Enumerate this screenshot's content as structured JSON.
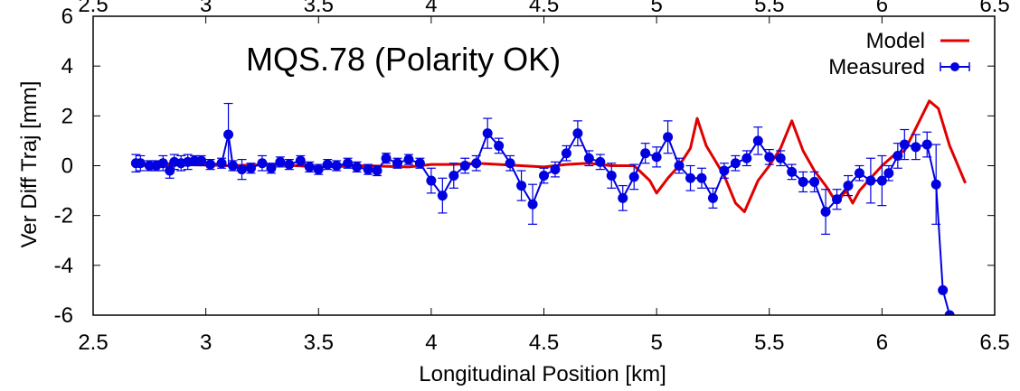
{
  "chart_data": {
    "type": "line",
    "title": "MQS.78 (Polarity OK)",
    "xlabel": "Longitudinal Position [km]",
    "ylabel": "Ver Diff Traj [mm]",
    "xlim": [
      2.5,
      6.5
    ],
    "ylim": [
      -6,
      6
    ],
    "x_ticks": [
      "2.5",
      "3",
      "3.5",
      "4",
      "4.5",
      "5",
      "5.5",
      "6",
      "6.5"
    ],
    "y_ticks": [
      "6",
      "4",
      "2",
      "0",
      "-2",
      "-4",
      "-6"
    ],
    "legend_position": "top-right",
    "grid": false,
    "series": [
      {
        "name": "Model",
        "color": "#e00000",
        "x": [
          2.7,
          2.9,
          3.1,
          3.3,
          3.5,
          3.7,
          3.9,
          4.0,
          4.1,
          4.2,
          4.3,
          4.4,
          4.5,
          4.6,
          4.7,
          4.8,
          4.9,
          4.97,
          5.0,
          5.05,
          5.1,
          5.15,
          5.18,
          5.22,
          5.3,
          5.35,
          5.39,
          5.45,
          5.5,
          5.55,
          5.6,
          5.65,
          5.7,
          5.75,
          5.8,
          5.84,
          5.87,
          5.9,
          5.95,
          6.0,
          6.05,
          6.1,
          6.15,
          6.21,
          6.25,
          6.3,
          6.37
        ],
        "y": [
          0.0,
          0.05,
          0.0,
          0.05,
          -0.05,
          0.0,
          -0.05,
          0.05,
          0.05,
          0.1,
          0.05,
          0.0,
          -0.05,
          0.05,
          0.1,
          0.0,
          0.0,
          -0.6,
          -1.1,
          -0.5,
          0.0,
          0.7,
          1.9,
          0.8,
          -0.4,
          -1.5,
          -1.85,
          -0.6,
          0.0,
          0.7,
          1.8,
          0.6,
          -0.2,
          -0.8,
          -1.5,
          -1.0,
          -1.5,
          -1.0,
          -0.5,
          0.0,
          0.4,
          0.6,
          1.5,
          2.6,
          2.3,
          0.8,
          -0.7
        ]
      },
      {
        "name": "Measured",
        "color": "#0000e0",
        "x": [
          2.69,
          2.71,
          2.75,
          2.78,
          2.81,
          2.84,
          2.86,
          2.89,
          2.92,
          2.95,
          2.98,
          3.02,
          3.07,
          3.1,
          3.12,
          3.16,
          3.2,
          3.25,
          3.29,
          3.33,
          3.37,
          3.42,
          3.46,
          3.5,
          3.54,
          3.58,
          3.63,
          3.67,
          3.72,
          3.76,
          3.8,
          3.85,
          3.9,
          3.95,
          4.0,
          4.05,
          4.1,
          4.15,
          4.2,
          4.25,
          4.3,
          4.35,
          4.4,
          4.45,
          4.5,
          4.55,
          4.6,
          4.65,
          4.7,
          4.75,
          4.8,
          4.85,
          4.9,
          4.95,
          5.0,
          5.05,
          5.1,
          5.15,
          5.2,
          5.25,
          5.3,
          5.35,
          5.4,
          5.45,
          5.5,
          5.55,
          5.6,
          5.65,
          5.7,
          5.75,
          5.8,
          5.85,
          5.9,
          5.95,
          6.0,
          6.03,
          6.07,
          6.1,
          6.15,
          6.2,
          6.24,
          6.27,
          6.3,
          6.32
        ],
        "y": [
          0.1,
          0.1,
          0.0,
          0.0,
          0.1,
          -0.2,
          0.15,
          0.1,
          0.15,
          0.2,
          0.2,
          0.05,
          0.1,
          1.25,
          0.0,
          -0.15,
          -0.1,
          0.1,
          -0.1,
          0.15,
          0.05,
          0.2,
          -0.05,
          -0.15,
          0.05,
          0.0,
          0.1,
          -0.05,
          -0.15,
          -0.2,
          0.3,
          0.1,
          0.25,
          0.1,
          -0.6,
          -1.2,
          -0.4,
          0.0,
          0.1,
          1.3,
          0.8,
          0.1,
          -0.8,
          -1.55,
          -0.4,
          -0.15,
          0.5,
          1.3,
          0.3,
          0.15,
          -0.4,
          -1.3,
          -0.45,
          0.5,
          0.35,
          1.15,
          0.0,
          -0.5,
          -0.5,
          -1.3,
          -0.2,
          0.1,
          0.3,
          1.0,
          0.35,
          0.3,
          -0.25,
          -0.65,
          -0.65,
          -1.85,
          -1.35,
          -0.8,
          -0.3,
          -0.6,
          -0.6,
          -0.3,
          0.4,
          0.85,
          0.75,
          0.85,
          -0.75,
          -5.0,
          -6.0,
          -7.0
        ],
        "yerr": [
          0.35,
          0.3,
          0.2,
          0.2,
          0.3,
          0.3,
          0.3,
          0.3,
          0.3,
          0.2,
          0.2,
          0.2,
          0.2,
          1.25,
          0.2,
          0.4,
          0.2,
          0.3,
          0.2,
          0.2,
          0.2,
          0.2,
          0.2,
          0.2,
          0.2,
          0.2,
          0.2,
          0.2,
          0.2,
          0.2,
          0.2,
          0.2,
          0.2,
          0.2,
          0.5,
          0.7,
          0.5,
          0.3,
          0.3,
          0.6,
          0.3,
          0.3,
          0.6,
          0.8,
          0.3,
          0.3,
          0.3,
          0.5,
          0.3,
          0.3,
          0.5,
          0.5,
          0.5,
          0.4,
          0.4,
          0.65,
          0.3,
          0.5,
          0.4,
          0.4,
          0.3,
          0.3,
          0.3,
          0.55,
          0.3,
          0.3,
          0.3,
          0.4,
          0.4,
          0.9,
          0.4,
          0.4,
          0.3,
          0.9,
          1.0,
          0.3,
          0.5,
          0.6,
          0.5,
          0.5,
          1.6,
          0.0,
          0.0,
          0.0
        ]
      }
    ]
  }
}
